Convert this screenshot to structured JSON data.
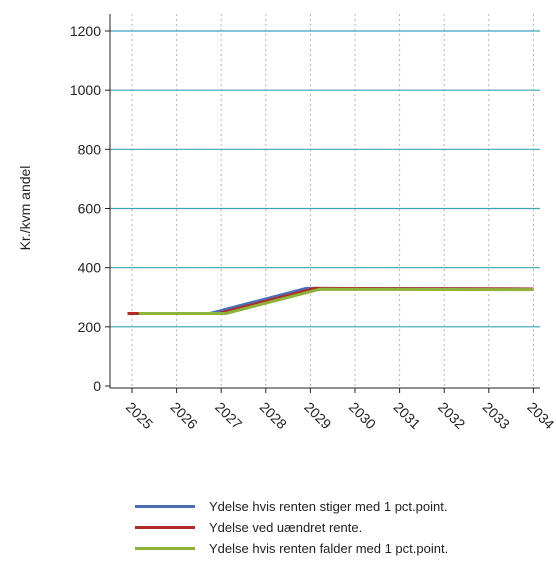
{
  "chart_data": {
    "type": "line",
    "ylabel": "Kr./kvm andel",
    "xlabel": "",
    "title": "",
    "x": [
      "2025",
      "2026",
      "2027",
      "2028",
      "2029",
      "2030",
      "2031",
      "2032",
      "2033",
      "2034"
    ],
    "ylim": [
      0,
      1200
    ],
    "yticks": [
      0,
      200,
      400,
      600,
      800,
      1000,
      1200
    ],
    "grid": {
      "horizontal": true,
      "vertical": "dotted"
    },
    "legend_position": "bottom",
    "series": [
      {
        "name": "Ydelse hvis renten stiger med 1 pct.point.",
        "color": "#4a6fb5",
        "points": [
          [
            2024.9,
            245
          ],
          [
            2026.75,
            245
          ],
          [
            2028.9,
            330
          ],
          [
            2029.2,
            330
          ],
          [
            2034.0,
            328
          ]
        ]
      },
      {
        "name": "Ydelse ved uændret rente.",
        "color": "#b02a2a",
        "points": [
          [
            2024.9,
            245
          ],
          [
            2026.95,
            245
          ],
          [
            2029.1,
            330
          ],
          [
            2029.2,
            330
          ],
          [
            2034.0,
            328
          ]
        ]
      },
      {
        "name": "Ydelse hvis renten falder med 1 pct.point.",
        "color": "#8fb33a",
        "points": [
          [
            2025.15,
            245
          ],
          [
            2027.1,
            245
          ],
          [
            2029.2,
            327
          ],
          [
            2034.0,
            326
          ]
        ]
      }
    ]
  }
}
